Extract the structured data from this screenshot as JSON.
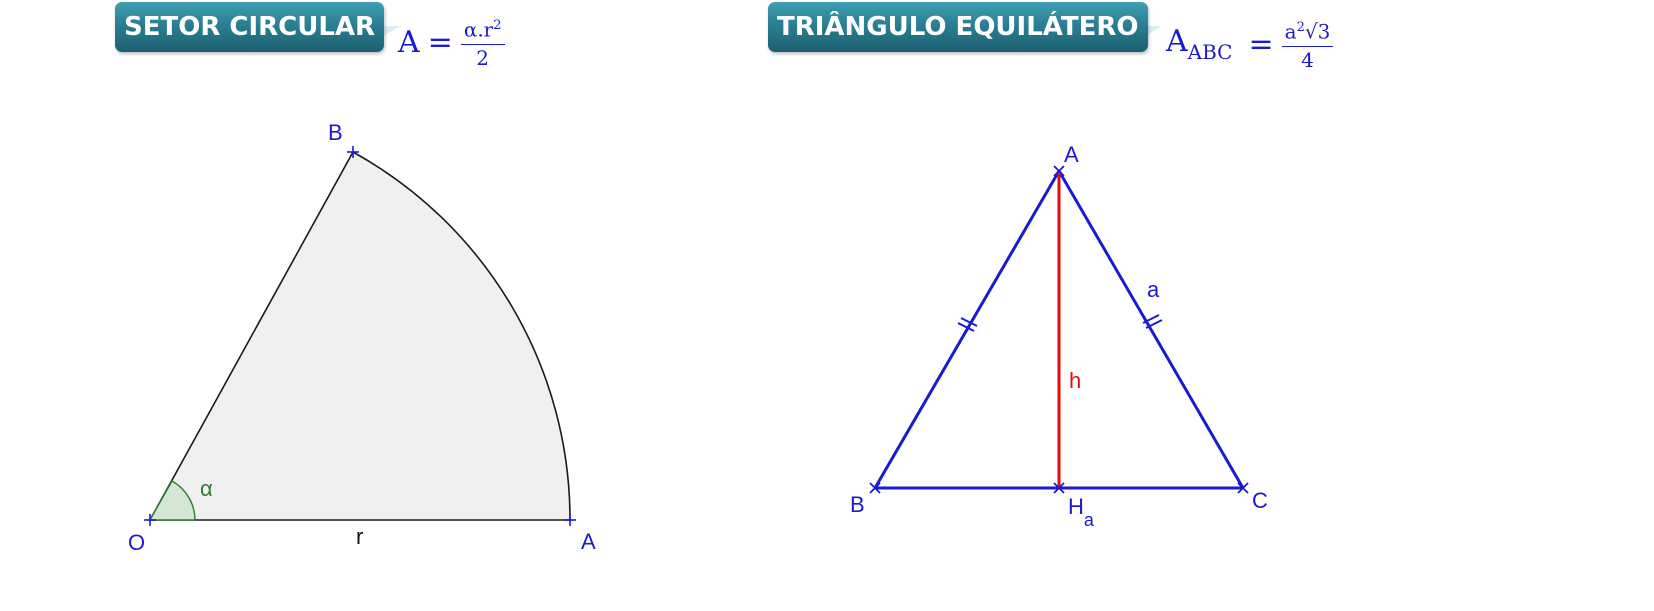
{
  "sector": {
    "title": "SETOR CIRCULAR",
    "formula": {
      "lhs": "A",
      "eq": "=",
      "numerator": "α.r",
      "numerator_exp": "2",
      "denominator": "2"
    },
    "labels": {
      "O": "O",
      "A": "A",
      "B": "B",
      "r": "r",
      "alpha": "α"
    },
    "colors": {
      "fill": "#f0f0f0",
      "stroke": "#1a1a1a",
      "angle": "#2e7d32",
      "angle_fill": "#d4e6d4",
      "points": "#1a1ad0"
    }
  },
  "triangle": {
    "title": "TRIÂNGULO EQUILÁTERO",
    "formula": {
      "lhs": "A",
      "lhs_sub": "ABC",
      "eq": "=",
      "numerator": "a",
      "numerator_exp": "2",
      "numerator_root": "√3",
      "denominator": "4"
    },
    "labels": {
      "A": "A",
      "B": "B",
      "C": "C",
      "H": "H",
      "H_sub": "a",
      "h": "h",
      "a": "a"
    },
    "colors": {
      "sides": "#1a1ad0",
      "height": "#e01010"
    }
  }
}
